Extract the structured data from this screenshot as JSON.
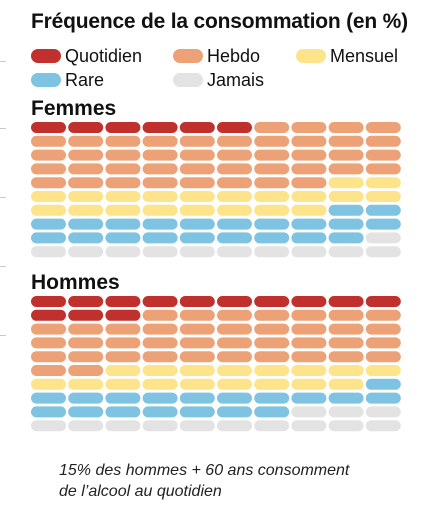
{
  "title": "Fréquence de la consommation (en %)",
  "legend": [
    {
      "key": "quotidien",
      "label": "Quotidien",
      "color": "#c0302c"
    },
    {
      "key": "hebdo",
      "label": "Hebdo",
      "color": "#eca276"
    },
    {
      "key": "mensuel",
      "label": "Mensuel",
      "color": "#fde48a"
    },
    {
      "key": "rare",
      "label": "Rare",
      "color": "#7ec3e2"
    },
    {
      "key": "jamais",
      "label": "Jamais",
      "color": "#e3e3e3"
    }
  ],
  "chart_data": {
    "type": "waffle",
    "unit": "%",
    "categories": [
      "Quotidien",
      "Hebdo",
      "Mensuel",
      "Rare",
      "Jamais"
    ],
    "series": [
      {
        "name": "Femmes",
        "values": [
          6,
          42,
          20,
          21,
          11
        ]
      },
      {
        "name": "Hommes",
        "values": [
          13,
          39,
          17,
          18,
          13
        ]
      }
    ]
  },
  "footnote_line1": "15% des hommes + 60 ans consomment",
  "footnote_line2": "de l’alcool au quotidien"
}
